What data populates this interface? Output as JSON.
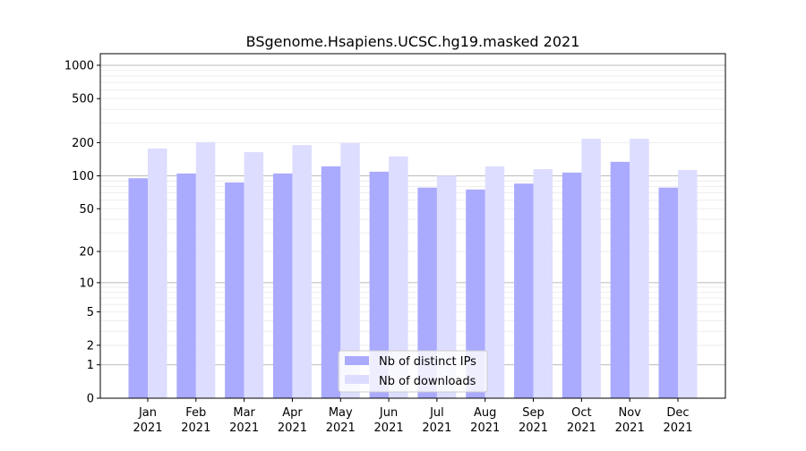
{
  "chart_data": {
    "type": "bar",
    "title": "BSgenome.Hsapiens.UCSC.hg19.masked 2021",
    "xlabel": "",
    "ylabel": "",
    "y_scale": "log(1+y)",
    "ylim": [
      0,
      1270
    ],
    "y_ticks": [
      0,
      1,
      2,
      5,
      10,
      20,
      50,
      100,
      200,
      500,
      1000
    ],
    "y_tick_labels": [
      "0",
      "1",
      "2",
      "5",
      "10",
      "20",
      "50",
      "100",
      "200",
      "500",
      "1000"
    ],
    "grid": true,
    "categories": [
      "Jan\n2021",
      "Feb\n2021",
      "Mar\n2021",
      "Apr\n2021",
      "May\n2021",
      "Jun\n2021",
      "Jul\n2021",
      "Aug\n2021",
      "Sep\n2021",
      "Oct\n2021",
      "Nov\n2021",
      "Dec\n2021"
    ],
    "category_months": [
      "Jan",
      "Feb",
      "Mar",
      "Apr",
      "May",
      "Jun",
      "Jul",
      "Aug",
      "Sep",
      "Oct",
      "Nov",
      "Dec"
    ],
    "category_year": "2021",
    "series": [
      {
        "name": "Nb of distinct IPs",
        "color": "#aaaaff",
        "values": [
          95,
          105,
          87,
          105,
          122,
          109,
          78,
          75,
          85,
          107,
          134,
          78
        ]
      },
      {
        "name": "Nb of downloads",
        "color": "#ddddff",
        "values": [
          177,
          202,
          164,
          190,
          198,
          150,
          100,
          122,
          115,
          217,
          217,
          113
        ]
      }
    ],
    "legend_position": "bottom-center"
  }
}
